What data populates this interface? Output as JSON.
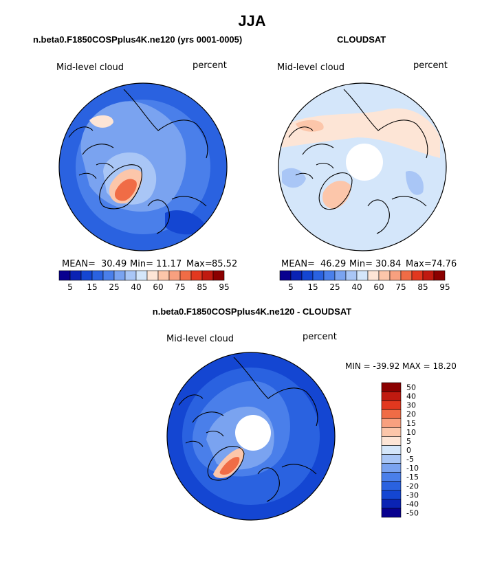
{
  "page": {
    "title": "JJA",
    "left_title": "n.beta0.F1850COSPplus4K.ne120 (yrs 0001-0005)",
    "right_title": "CLOUDSAT",
    "diff_title": "n.beta0.F1850COSPplus4K.ne120 - CLOUDSAT"
  },
  "panels": {
    "model": {
      "variable": "Mid-level cloud",
      "units": "percent",
      "mean_label": "MEAN=",
      "mean_value": "30.49",
      "min_label": "Min=",
      "min_value": "11.17",
      "max_label": "Max=",
      "max_value": "85.52"
    },
    "obs": {
      "variable": "Mid-level cloud",
      "units": "percent",
      "mean_label": "MEAN=",
      "mean_value": "46.29",
      "min_label": "Min=",
      "min_value": "30.84",
      "max_label": "Max=",
      "max_value": "74.76"
    },
    "diff": {
      "variable": "Mid-level cloud",
      "units": "percent",
      "minmax_text": "MIN = -39.92 MAX =  18.20"
    }
  },
  "colors": {
    "abs_scale": [
      "#08008f",
      "#0a23b4",
      "#1446d2",
      "#2a62e0",
      "#4a7fea",
      "#7aa3f0",
      "#a9c6f6",
      "#d4e6fa",
      "#fde5d6",
      "#fcc6aa",
      "#f8a07f",
      "#f06c46",
      "#e2381f",
      "#c01a10",
      "#8b0000"
    ],
    "diff_scale": [
      "#08008f",
      "#0a23b4",
      "#1446d2",
      "#2a62e0",
      "#4a7fea",
      "#7aa3f0",
      "#a9c6f6",
      "#d4e6fa",
      "#fde5d6",
      "#fcc6aa",
      "#f8a07f",
      "#f06c46",
      "#e2381f",
      "#c01a10",
      "#8b0000"
    ],
    "coast": "#000000"
  },
  "chart_data": [
    {
      "type": "heatmap",
      "projection": "north-polar-stereographic",
      "title": "n.beta0.F1850COSPplus4K.ne120 (yrs 0001-0005)",
      "variable": "Mid-level cloud",
      "units": "percent",
      "stats": {
        "mean": 30.49,
        "min": 11.17,
        "max": 85.52
      },
      "colorbar_levels": [
        5,
        10,
        15,
        20,
        25,
        30,
        40,
        50,
        60,
        70,
        75,
        80,
        85,
        90,
        95
      ],
      "colorbar_labels": [
        "5",
        "15",
        "25",
        "40",
        "60",
        "75",
        "85",
        "95"
      ]
    },
    {
      "type": "heatmap",
      "projection": "north-polar-stereographic",
      "title": "CLOUDSAT",
      "variable": "Mid-level cloud",
      "units": "percent",
      "stats": {
        "mean": 46.29,
        "min": 30.84,
        "max": 74.76
      },
      "colorbar_levels": [
        5,
        10,
        15,
        20,
        25,
        30,
        40,
        50,
        60,
        70,
        75,
        80,
        85,
        90,
        95
      ],
      "colorbar_labels": [
        "5",
        "15",
        "25",
        "40",
        "60",
        "75",
        "85",
        "95"
      ]
    },
    {
      "type": "heatmap",
      "projection": "north-polar-stereographic",
      "title": "n.beta0.F1850COSPplus4K.ne120 - CLOUDSAT",
      "variable": "Mid-level cloud",
      "units": "percent",
      "stats": {
        "min": -39.92,
        "max": 18.2
      },
      "colorbar_levels": [
        -50,
        -40,
        -30,
        -20,
        -15,
        -10,
        -5,
        0,
        5,
        10,
        15,
        20,
        30,
        40,
        50
      ],
      "colorbar_labels": [
        "-50",
        "-40",
        "-30",
        "-20",
        "-15",
        "-10",
        "-5",
        "0",
        "5",
        "10",
        "15",
        "20",
        "30",
        "40",
        "50"
      ]
    }
  ]
}
